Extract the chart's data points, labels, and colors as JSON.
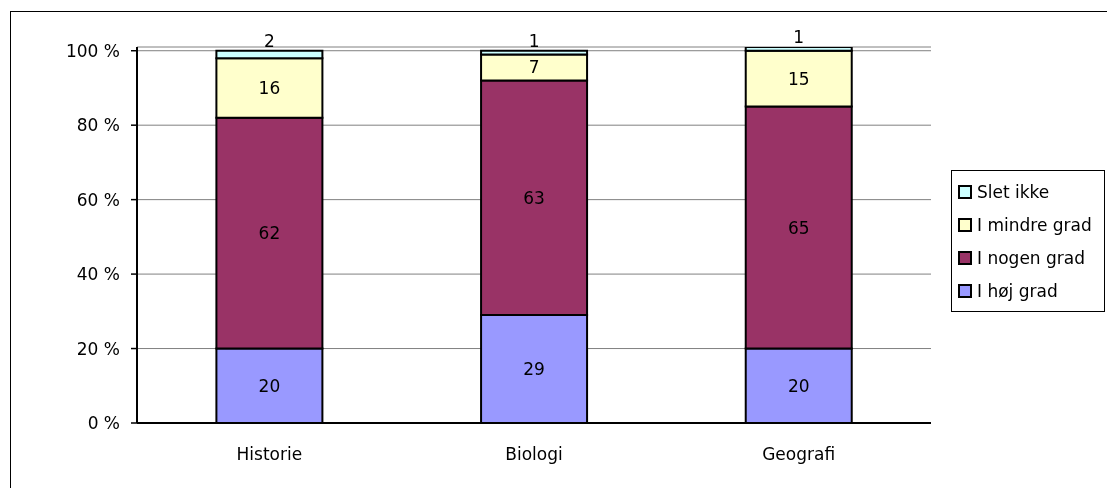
{
  "chart_data": {
    "type": "bar",
    "categories": [
      "Historie",
      "Biologi",
      "Geografi"
    ],
    "stacked": true,
    "series": [
      {
        "name": "I høj grad",
        "color": "#9999ff",
        "values": [
          20,
          29,
          20
        ]
      },
      {
        "name": "I nogen grad",
        "color": "#993366",
        "values": [
          62,
          63,
          65
        ]
      },
      {
        "name": "I mindre grad",
        "color": "#ffffcc",
        "values": [
          16,
          7,
          15
        ]
      },
      {
        "name": "Slet ikke",
        "color": "#ccffff",
        "values": [
          2,
          1,
          1
        ]
      }
    ],
    "ylim": [
      0,
      101
    ],
    "yticks": [
      {
        "value": 0,
        "label": "0 %"
      },
      {
        "value": 20,
        "label": "20 %"
      },
      {
        "value": 40,
        "label": "40 %"
      },
      {
        "value": 60,
        "label": "60 %"
      },
      {
        "value": 80,
        "label": "80 %"
      },
      {
        "value": 100,
        "label": "100 %"
      }
    ],
    "grid": "y",
    "legend": "right",
    "data_labels": true
  }
}
